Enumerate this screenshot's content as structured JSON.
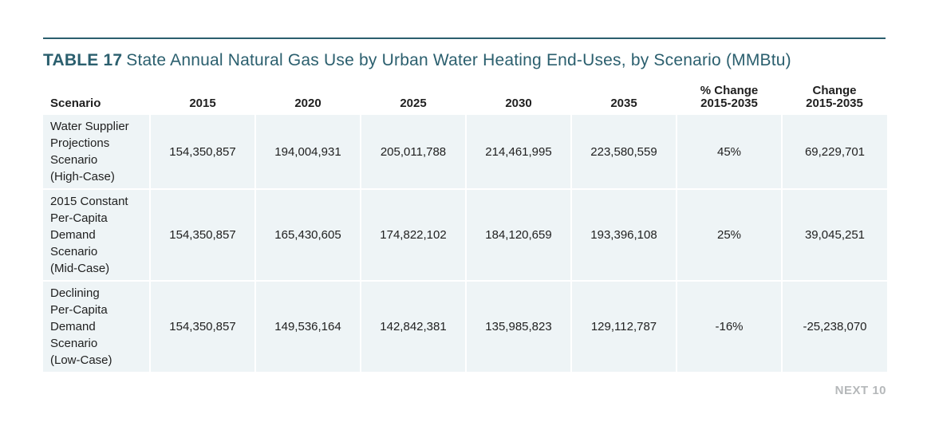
{
  "title": {
    "label": "TABLE 17",
    "text": "State Annual Natural Gas Use by Urban Water Heating End-Uses, by Scenario (MMBtu)"
  },
  "table": {
    "headers": [
      [
        "Scenario"
      ],
      [
        "2015"
      ],
      [
        "2020"
      ],
      [
        "2025"
      ],
      [
        "2030"
      ],
      [
        "2035"
      ],
      [
        "% Change",
        "2015-2035"
      ],
      [
        "Change",
        "2015-2035"
      ]
    ],
    "rows": [
      {
        "scenario_lines": [
          "Water Supplier",
          "Projections",
          "Scenario",
          "(High-Case)"
        ],
        "values": [
          "154,350,857",
          "194,004,931",
          "205,011,788",
          "214,461,995",
          "223,580,559",
          "45%",
          "69,229,701"
        ]
      },
      {
        "scenario_lines": [
          "2015 Constant",
          "Per-Capita",
          "Demand",
          "Scenario",
          "(Mid-Case)"
        ],
        "values": [
          "154,350,857",
          "165,430,605",
          "174,822,102",
          "184,120,659",
          "193,396,108",
          "25%",
          "39,045,251"
        ]
      },
      {
        "scenario_lines": [
          "Declining",
          "Per-Capita",
          "Demand",
          "Scenario",
          "(Low-Case)"
        ],
        "values": [
          "154,350,857",
          "149,536,164",
          "142,842,381",
          "135,985,823",
          "129,112,787",
          "-16%",
          "-25,238,070"
        ]
      }
    ]
  },
  "footer": {
    "page_label": "NEXT 10"
  },
  "colors": {
    "accent": "#2b5f6e",
    "row_fill": "#eef4f6",
    "footer_text": "#b5b8ba"
  }
}
